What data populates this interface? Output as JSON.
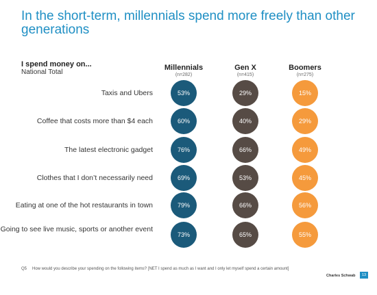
{
  "title": "In the short-term, millennials spend more freely than other generations",
  "section": {
    "heading": "I spend money on...",
    "subheading": "National Total"
  },
  "chart_data": {
    "type": "table",
    "series": [
      {
        "name": "Millennials",
        "n": "(n=282)",
        "color": "#1b5a7a",
        "text_color": "#ffffff",
        "labels": [
          "53%",
          "60%",
          "76%",
          "69%",
          "79%",
          "73%"
        ],
        "values": [
          53,
          60,
          76,
          69,
          79,
          73
        ]
      },
      {
        "name": "Gen X",
        "n": "(n=415)",
        "color": "#564b45",
        "text_color": "#ffffff",
        "labels": [
          "29%",
          "40%",
          "66%",
          "53%",
          "66%",
          "65%"
        ],
        "values": [
          29,
          40,
          66,
          53,
          66,
          65
        ]
      },
      {
        "name": "Boomers",
        "n": "(n=275)",
        "color": "#f59a3c",
        "text_color": "#ffffff",
        "labels": [
          "15%",
          "29%",
          "49%",
          "45%",
          "56%",
          "55%"
        ],
        "values": [
          15,
          29,
          49,
          45,
          56,
          55
        ]
      }
    ],
    "categories": [
      "Taxis and Ubers",
      "Coffee that costs more than $4 each",
      "The latest electronic gadget",
      "Clothes that I don’t necessarily need",
      "Eating at one of the hot restaurants in town",
      "Going to see live music, sports or another event"
    ]
  },
  "footnote": {
    "qnum": "Q5",
    "text": "How would you describe your spending on the following items? [NET I spend as much as I want and I only let myself spend a certain amount]"
  },
  "brand": "Charles Schwab",
  "page_number": "13"
}
